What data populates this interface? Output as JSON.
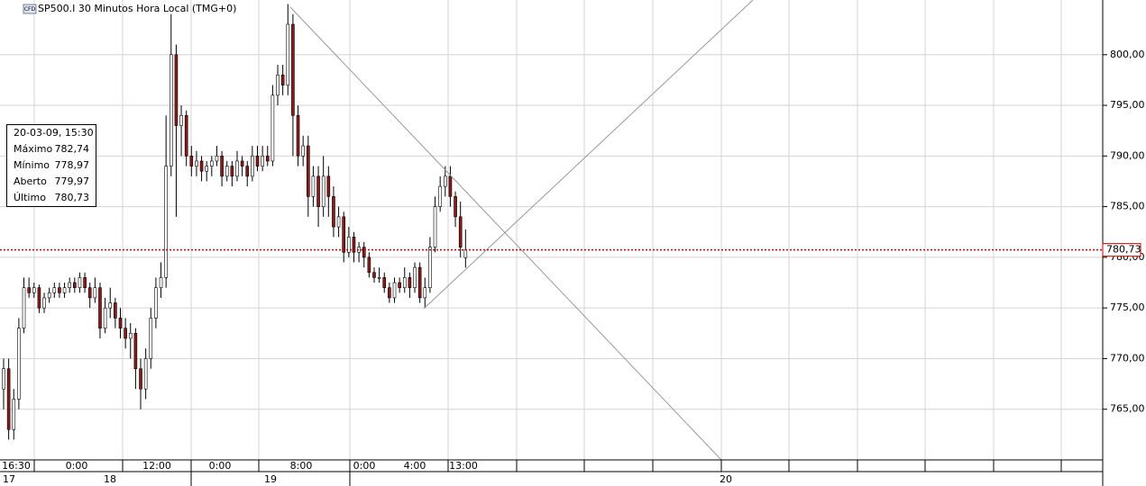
{
  "chart_data": {
    "type": "candlestick",
    "title": "SP500.I 30 Minutos Hora Local (TMG+0)",
    "badge": "CFD",
    "ylim": [
      760,
      805.4
    ],
    "yticks": [
      {
        "value": 765,
        "label": "765,00"
      },
      {
        "value": 770,
        "label": "770,00"
      },
      {
        "value": 775,
        "label": "775,00"
      },
      {
        "value": 780,
        "label": "780,00"
      },
      {
        "value": 785,
        "label": "785,00"
      },
      {
        "value": 790,
        "label": "790,00"
      },
      {
        "value": 795,
        "label": "795,00"
      },
      {
        "value": 800,
        "label": "800,00"
      }
    ],
    "grid": true,
    "bull_color": "#ffffff",
    "bear_color": "#8b1a1a",
    "last_price": {
      "value": 780.73,
      "label": "780,73"
    },
    "last_price_color": "#c00000",
    "time_labels": [
      "16:30",
      "0:00",
      "12:00",
      "0:00",
      "8:00",
      "0:00",
      "4:00",
      "13:00"
    ],
    "date_labels": [
      "17",
      "18",
      "19",
      "20"
    ],
    "info_box": {
      "datetime": "20-03-09, 15:30",
      "rows": [
        {
          "label": "Máximo",
          "value": "782,74"
        },
        {
          "label": "Mínimo",
          "value": "778,97"
        },
        {
          "label": "Aberto",
          "value": "779,97"
        },
        {
          "label": "Último",
          "value": "780,73"
        }
      ]
    },
    "candles": [
      [
        767,
        770,
        765,
        769
      ],
      [
        769,
        770,
        762,
        763
      ],
      [
        763,
        767,
        762,
        766
      ],
      [
        766,
        774,
        765,
        773
      ],
      [
        773,
        778,
        772.5,
        777
      ],
      [
        777,
        778,
        776,
        776.5
      ],
      [
        776.5,
        777.5,
        776,
        777
      ],
      [
        777,
        777.3,
        774.5,
        775
      ],
      [
        775,
        776.5,
        774.5,
        776
      ],
      [
        776,
        777,
        775.5,
        776.5
      ],
      [
        776.5,
        777.5,
        776,
        777
      ],
      [
        777,
        777.5,
        776,
        776.5
      ],
      [
        776.5,
        777.5,
        776,
        777
      ],
      [
        777,
        778,
        776.5,
        777.5
      ],
      [
        777.5,
        778,
        776.5,
        777
      ],
      [
        777,
        778.5,
        776.5,
        778
      ],
      [
        778,
        778.5,
        776.5,
        777
      ],
      [
        777,
        777.5,
        775,
        776
      ],
      [
        776,
        778,
        775.5,
        777
      ],
      [
        777,
        777.5,
        772,
        773
      ],
      [
        773,
        776,
        772.5,
        775
      ],
      [
        775,
        777,
        774,
        775.5
      ],
      [
        775.5,
        776,
        773,
        774
      ],
      [
        774,
        775,
        772,
        773
      ],
      [
        773,
        774,
        771,
        772
      ],
      [
        772,
        773.5,
        770,
        772.5
      ],
      [
        772.5,
        773,
        767,
        769
      ],
      [
        769,
        770,
        765,
        767
      ],
      [
        767,
        771,
        766,
        770
      ],
      [
        770,
        775,
        769,
        774
      ],
      [
        774,
        778,
        773,
        777
      ],
      [
        777,
        779.5,
        776,
        778
      ],
      [
        778,
        794,
        777,
        789
      ],
      [
        789,
        804,
        788,
        800
      ],
      [
        800,
        801,
        784,
        793
      ],
      [
        793,
        795,
        790,
        794
      ],
      [
        794,
        794.5,
        789,
        790
      ],
      [
        790,
        791,
        788,
        789
      ],
      [
        789,
        790.5,
        788,
        789.5
      ],
      [
        789.5,
        790,
        787.5,
        788.5
      ],
      [
        788.5,
        789.5,
        787.5,
        789
      ],
      [
        789,
        790,
        788,
        789.5
      ],
      [
        789.5,
        791,
        789,
        790
      ],
      [
        790,
        790.5,
        787,
        788
      ],
      [
        788,
        789.5,
        787.5,
        789
      ],
      [
        789,
        789.5,
        787,
        788
      ],
      [
        788,
        790.5,
        787.5,
        789.5
      ],
      [
        789.5,
        790,
        788,
        789
      ],
      [
        789,
        789.5,
        787,
        788
      ],
      [
        788,
        791,
        787.5,
        790
      ],
      [
        790,
        791,
        788.5,
        789
      ],
      [
        789,
        791,
        788.5,
        790
      ],
      [
        790,
        791,
        789,
        789.5
      ],
      [
        789.5,
        797,
        789,
        796
      ],
      [
        796,
        799,
        795,
        798
      ],
      [
        798,
        799,
        796,
        797
      ],
      [
        797,
        805,
        796,
        803
      ],
      [
        803,
        804,
        790,
        794
      ],
      [
        794,
        795,
        789,
        790
      ],
      [
        790,
        792,
        789,
        791
      ],
      [
        791,
        792,
        784,
        786
      ],
      [
        786,
        789,
        785,
        788
      ],
      [
        788,
        789,
        783,
        785
      ],
      [
        785,
        790,
        784,
        788
      ],
      [
        788,
        789,
        784,
        786
      ],
      [
        786,
        787,
        782,
        783
      ],
      [
        783,
        785,
        782,
        784
      ],
      [
        784,
        784.5,
        779.5,
        780.5
      ],
      [
        780.5,
        783,
        780,
        782
      ],
      [
        782,
        782.5,
        779.5,
        780.5
      ],
      [
        780.5,
        781.5,
        779.5,
        781
      ],
      [
        781,
        781.5,
        779,
        780
      ],
      [
        780,
        780.5,
        778,
        778.5
      ],
      [
        778.5,
        779,
        777.5,
        778
      ],
      [
        778,
        779,
        777.5,
        778
      ],
      [
        778,
        778.5,
        776.5,
        777
      ],
      [
        777,
        777.5,
        775.5,
        776
      ],
      [
        776,
        778,
        775.5,
        777.5
      ],
      [
        777.5,
        778,
        776.5,
        777
      ],
      [
        777,
        779,
        776.5,
        778
      ],
      [
        778,
        778.5,
        776,
        777
      ],
      [
        777,
        779.5,
        776.5,
        779
      ],
      [
        779,
        779.5,
        775.5,
        776
      ],
      [
        776,
        778,
        775,
        777
      ],
      [
        777,
        782,
        776.5,
        781
      ],
      [
        781,
        786,
        780.5,
        785
      ],
      [
        785,
        788,
        784.5,
        787
      ],
      [
        787,
        789,
        786,
        788
      ],
      [
        788,
        789,
        785,
        786
      ],
      [
        786,
        786.5,
        783,
        784
      ],
      [
        784,
        785.5,
        780,
        781
      ],
      [
        779.97,
        782.74,
        778.97,
        780.73
      ]
    ]
  }
}
